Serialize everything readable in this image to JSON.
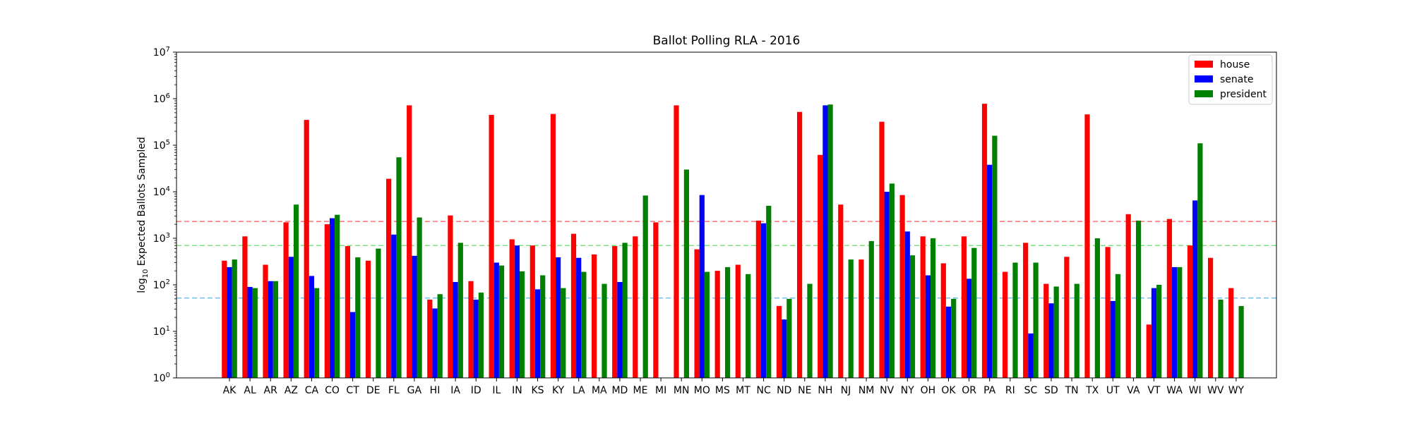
{
  "chart_data": {
    "type": "bar",
    "title": "Ballot Polling RLA - 2016",
    "ylabel_prefix": "log",
    "ylabel_sub": "10",
    "ylabel_rest": " Expected Ballots Sampled",
    "yscale": "log",
    "ylim": [
      1,
      10000000
    ],
    "ytick_exponents": [
      "0",
      "1",
      "2",
      "3",
      "4",
      "5",
      "6",
      "7"
    ],
    "ytick_base": "10",
    "grid": false,
    "legend_position": "top-right",
    "categories": [
      "AK",
      "AL",
      "AR",
      "AZ",
      "CA",
      "CO",
      "CT",
      "DE",
      "FL",
      "GA",
      "HI",
      "IA",
      "ID",
      "IL",
      "IN",
      "KS",
      "KY",
      "LA",
      "MA",
      "MD",
      "ME",
      "MI",
      "MN",
      "MO",
      "MS",
      "MT",
      "NC",
      "ND",
      "NE",
      "NH",
      "NJ",
      "NM",
      "NV",
      "NY",
      "OH",
      "OK",
      "OR",
      "PA",
      "RI",
      "SC",
      "SD",
      "TN",
      "TX",
      "UT",
      "VA",
      "VT",
      "WA",
      "WI",
      "WV",
      "WY"
    ],
    "series": [
      {
        "name": "house",
        "color": "#ff0000",
        "values": [
          330,
          1100,
          270,
          2200,
          350000,
          2000,
          680,
          330,
          19000,
          720000,
          48,
          3100,
          120,
          450000,
          950,
          700,
          470000,
          1250,
          450,
          680,
          1100,
          2200,
          720000,
          580,
          200,
          270,
          2400,
          35,
          520000,
          62000,
          5300,
          350,
          320000,
          8500,
          1100,
          290,
          1100,
          780000,
          190,
          800,
          105,
          400,
          460000,
          650,
          3300,
          14,
          2600,
          700,
          380,
          85
        ]
      },
      {
        "name": "senate",
        "color": "#0000ff",
        "values": [
          240,
          90,
          120,
          400,
          155,
          2700,
          26,
          null,
          1200,
          420,
          31,
          115,
          48,
          300,
          700,
          80,
          390,
          380,
          null,
          115,
          null,
          null,
          null,
          8500,
          null,
          null,
          2100,
          18,
          null,
          720000,
          null,
          null,
          10000,
          1400,
          160,
          34,
          135,
          38000,
          null,
          9,
          40,
          null,
          null,
          45,
          null,
          85,
          240,
          6500,
          null,
          null
        ]
      },
      {
        "name": "president",
        "color": "#008000",
        "values": [
          350,
          85,
          120,
          5300,
          85,
          3200,
          390,
          600,
          55000,
          2800,
          63,
          800,
          68,
          260,
          195,
          160,
          85,
          190,
          105,
          800,
          8300,
          null,
          30000,
          190,
          240,
          170,
          5000,
          50,
          105,
          750000,
          350,
          870,
          15000,
          430,
          1000,
          50,
          620,
          160000,
          300,
          300,
          92,
          105,
          1000,
          170,
          2400,
          100,
          240,
          110000,
          48,
          35
        ]
      }
    ],
    "reference_lines": [
      {
        "value": 2300,
        "color": "#ff5555"
      },
      {
        "value": 700,
        "color": "#66dd66"
      },
      {
        "value": 52,
        "color": "#55b8ee"
      }
    ]
  }
}
